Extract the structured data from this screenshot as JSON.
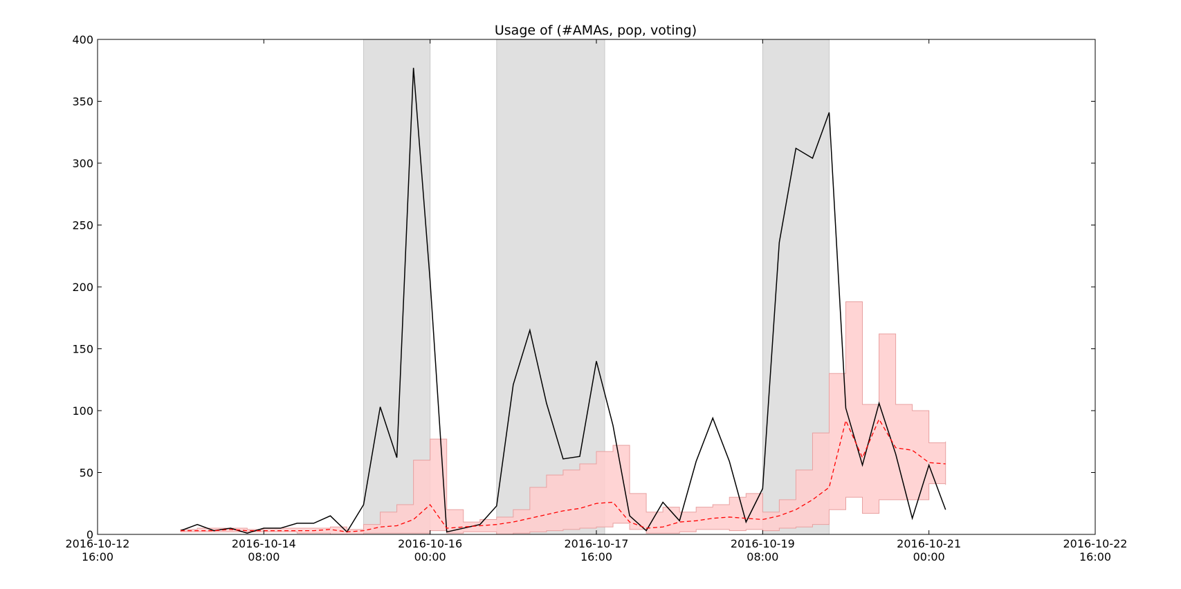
{
  "chart_data": {
    "type": "line",
    "title": "Usage of (#AMAs, pop, voting)",
    "xlabel": "",
    "ylabel": "",
    "ylim": [
      0,
      400
    ],
    "yticks": [
      0,
      50,
      100,
      150,
      200,
      250,
      300,
      350,
      400
    ],
    "xlim": [
      "2016-10-12T16:00",
      "2016-10-22T16:00"
    ],
    "xticks": [
      {
        "at": "2016-10-12T16:00",
        "date": "2016-10-12",
        "time": "16:00"
      },
      {
        "at": "2016-10-14T08:00",
        "date": "2016-10-14",
        "time": "08:00"
      },
      {
        "at": "2016-10-16T00:00",
        "date": "2016-10-16",
        "time": "00:00"
      },
      {
        "at": "2016-10-17T16:00",
        "date": "2016-10-17",
        "time": "16:00"
      },
      {
        "at": "2016-10-19T08:00",
        "date": "2016-10-19",
        "time": "08:00"
      },
      {
        "at": "2016-10-21T00:00",
        "date": "2016-10-21",
        "time": "00:00"
      },
      {
        "at": "2016-10-22T16:00",
        "date": "2016-10-22",
        "time": "16:00"
      }
    ],
    "shaded_spans": [
      {
        "start": "2016-10-15T08:00",
        "end": "2016-10-16T00:00"
      },
      {
        "start": "2016-10-16T16:00",
        "end": "2016-10-17T18:00"
      },
      {
        "start": "2016-10-19T08:00",
        "end": "2016-10-20T00:00"
      }
    ],
    "colors": {
      "usage": "#000000",
      "mean": "#ff0000",
      "band": "#ffcccc",
      "shade": "#e0e0e0"
    },
    "series": [
      {
        "style": "solid-black",
        "x": [
          "2016-10-13T12:00",
          "2016-10-13T16:00",
          "2016-10-13T20:00",
          "2016-10-14T00:00",
          "2016-10-14T04:00",
          "2016-10-14T08:00",
          "2016-10-14T12:00",
          "2016-10-14T16:00",
          "2016-10-14T20:00",
          "2016-10-15T00:00",
          "2016-10-15T04:00",
          "2016-10-15T08:00",
          "2016-10-15T12:00",
          "2016-10-15T16:00",
          "2016-10-15T20:00",
          "2016-10-16T00:00",
          "2016-10-16T04:00",
          "2016-10-16T08:00",
          "2016-10-16T12:00",
          "2016-10-16T16:00",
          "2016-10-16T20:00",
          "2016-10-17T00:00",
          "2016-10-17T04:00",
          "2016-10-17T08:00",
          "2016-10-17T12:00",
          "2016-10-17T16:00",
          "2016-10-17T20:00",
          "2016-10-18T00:00",
          "2016-10-18T04:00",
          "2016-10-18T08:00",
          "2016-10-18T12:00",
          "2016-10-18T16:00",
          "2016-10-18T20:00",
          "2016-10-19T00:00",
          "2016-10-19T04:00",
          "2016-10-19T08:00",
          "2016-10-19T12:00",
          "2016-10-19T16:00",
          "2016-10-19T20:00",
          "2016-10-20T00:00",
          "2016-10-20T04:00",
          "2016-10-20T08:00",
          "2016-10-20T12:00",
          "2016-10-20T16:00",
          "2016-10-20T20:00",
          "2016-10-21T00:00",
          "2016-10-21T04:00"
        ],
        "values": [
          3,
          8,
          3,
          5,
          1,
          5,
          5,
          9,
          9,
          15,
          2,
          24,
          103,
          62,
          377,
          205,
          2,
          5,
          8,
          23,
          121,
          165,
          106,
          61,
          63,
          140,
          88,
          15,
          3,
          26,
          11,
          59,
          94,
          59,
          10,
          37,
          236,
          312,
          304,
          341,
          102,
          56,
          106,
          65,
          13,
          56,
          20
        ]
      },
      {
        "style": "dashed-red",
        "x": [
          "2016-10-13T12:00",
          "2016-10-13T16:00",
          "2016-10-13T20:00",
          "2016-10-14T00:00",
          "2016-10-14T04:00",
          "2016-10-14T08:00",
          "2016-10-14T12:00",
          "2016-10-14T16:00",
          "2016-10-14T20:00",
          "2016-10-15T00:00",
          "2016-10-15T04:00",
          "2016-10-15T08:00",
          "2016-10-15T12:00",
          "2016-10-15T16:00",
          "2016-10-15T20:00",
          "2016-10-16T00:00",
          "2016-10-16T04:00",
          "2016-10-16T08:00",
          "2016-10-16T12:00",
          "2016-10-16T16:00",
          "2016-10-16T20:00",
          "2016-10-17T00:00",
          "2016-10-17T04:00",
          "2016-10-17T08:00",
          "2016-10-17T12:00",
          "2016-10-17T16:00",
          "2016-10-17T20:00",
          "2016-10-18T00:00",
          "2016-10-18T04:00",
          "2016-10-18T08:00",
          "2016-10-18T12:00",
          "2016-10-18T16:00",
          "2016-10-18T20:00",
          "2016-10-19T00:00",
          "2016-10-19T04:00",
          "2016-10-19T08:00",
          "2016-10-19T12:00",
          "2016-10-19T16:00",
          "2016-10-19T20:00",
          "2016-10-20T00:00",
          "2016-10-20T04:00",
          "2016-10-20T08:00",
          "2016-10-20T12:00",
          "2016-10-20T16:00",
          "2016-10-20T20:00",
          "2016-10-21T00:00",
          "2016-10-21T04:00"
        ],
        "values": [
          3,
          3,
          3,
          4,
          3,
          3,
          3,
          3,
          3,
          4,
          2,
          3,
          6,
          7,
          12,
          24,
          5,
          6,
          7,
          8,
          10,
          13,
          16,
          19,
          21,
          25,
          26,
          10,
          5,
          6,
          10,
          11,
          13,
          14,
          13,
          12,
          15,
          20,
          28,
          38,
          92,
          62,
          93,
          70,
          68,
          58,
          57
        ],
        "lower": [
          2,
          2,
          2,
          2,
          2,
          2,
          2,
          1,
          1,
          0,
          0,
          1,
          1,
          1,
          1,
          3,
          1,
          2,
          2,
          0,
          1,
          2,
          3,
          4,
          5,
          6,
          9,
          4,
          1,
          1,
          2,
          4,
          4,
          3,
          4,
          3,
          5,
          6,
          8,
          20,
          30,
          17,
          28,
          28,
          28,
          41,
          40
        ],
        "upper": [
          4,
          5,
          5,
          5,
          4,
          5,
          5,
          5,
          5,
          6,
          4,
          8,
          18,
          24,
          60,
          77,
          20,
          10,
          12,
          14,
          20,
          38,
          48,
          52,
          57,
          67,
          72,
          33,
          18,
          22,
          18,
          22,
          24,
          30,
          33,
          18,
          28,
          52,
          82,
          130,
          188,
          105,
          162,
          105,
          100,
          74,
          75
        ]
      }
    ]
  }
}
